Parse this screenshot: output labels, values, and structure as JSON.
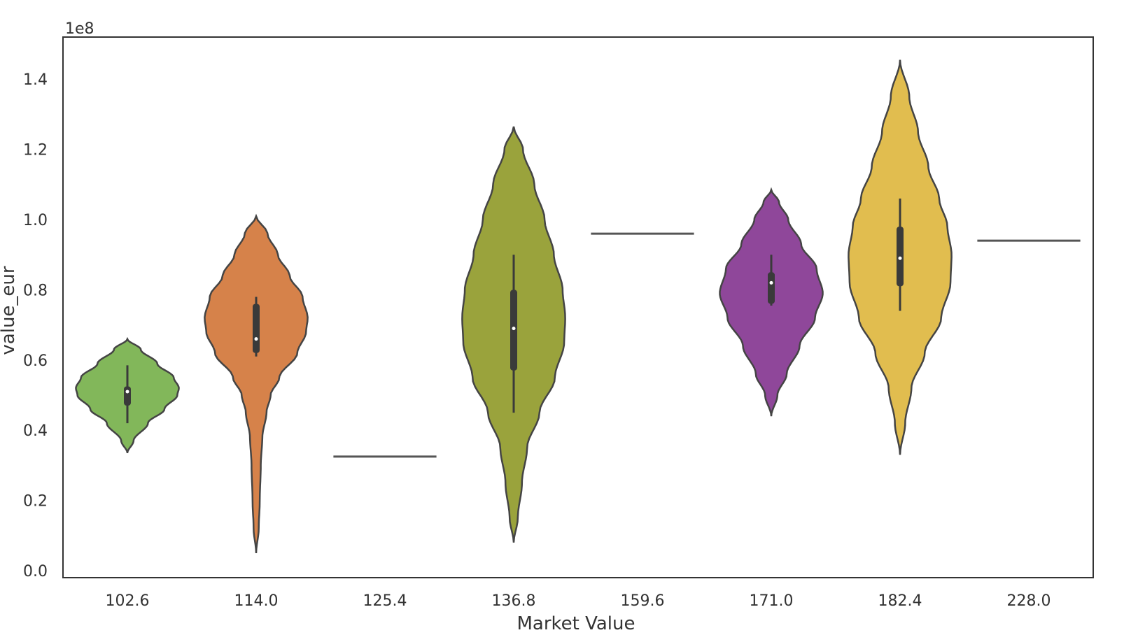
{
  "chart_data": {
    "type": "violin",
    "xlabel": "Market Value",
    "ylabel": "value_eur",
    "y_offset_label": "1e8",
    "ylim": [
      -0.02,
      1.52
    ],
    "y_ticks": [
      0.0,
      0.2,
      0.4,
      0.6,
      0.8,
      1.0,
      1.2,
      1.4
    ],
    "y_tick_labels": [
      "0.0",
      "0.2",
      "0.4",
      "0.6",
      "0.8",
      "1.0",
      "1.2",
      "1.4"
    ],
    "grid": false,
    "categories": [
      "102.6",
      "114.0",
      "125.4",
      "136.8",
      "159.6",
      "171.0",
      "182.4",
      "228.0"
    ],
    "violins": [
      {
        "category": "102.6",
        "color": "#82b75a",
        "min": 0.335,
        "max": 0.66,
        "q1": 0.47,
        "median": 0.51,
        "q3": 0.525,
        "whisker_low": 0.42,
        "whisker_high": 0.585,
        "profile": [
          [
            0.335,
            0.0
          ],
          [
            0.37,
            0.12
          ],
          [
            0.42,
            0.4
          ],
          [
            0.46,
            0.72
          ],
          [
            0.5,
            0.97
          ],
          [
            0.52,
            1.0
          ],
          [
            0.55,
            0.9
          ],
          [
            0.59,
            0.58
          ],
          [
            0.63,
            0.26
          ],
          [
            0.66,
            0.0
          ]
        ]
      },
      {
        "category": "114.0",
        "color": "#d6824a",
        "min": 0.05,
        "max": 1.01,
        "q1": 0.62,
        "median": 0.66,
        "q3": 0.76,
        "whisker_low": 0.61,
        "whisker_high": 0.78,
        "profile": [
          [
            0.05,
            0.0
          ],
          [
            0.12,
            0.05
          ],
          [
            0.2,
            0.07
          ],
          [
            0.3,
            0.09
          ],
          [
            0.38,
            0.12
          ],
          [
            0.45,
            0.2
          ],
          [
            0.5,
            0.28
          ],
          [
            0.55,
            0.45
          ],
          [
            0.62,
            0.8
          ],
          [
            0.68,
            0.97
          ],
          [
            0.72,
            1.0
          ],
          [
            0.78,
            0.9
          ],
          [
            0.84,
            0.65
          ],
          [
            0.9,
            0.42
          ],
          [
            0.96,
            0.22
          ],
          [
            1.01,
            0.0
          ]
        ]
      },
      {
        "category": "125.4",
        "color": "#555555",
        "single": 0.325
      },
      {
        "category": "136.8",
        "color": "#9aa33c",
        "min": 0.08,
        "max": 1.265,
        "q1": 0.57,
        "median": 0.69,
        "q3": 0.8,
        "whisker_low": 0.45,
        "whisker_high": 0.9,
        "profile": [
          [
            0.08,
            0.0
          ],
          [
            0.15,
            0.08
          ],
          [
            0.25,
            0.16
          ],
          [
            0.35,
            0.26
          ],
          [
            0.45,
            0.5
          ],
          [
            0.55,
            0.8
          ],
          [
            0.65,
            0.98
          ],
          [
            0.72,
            1.0
          ],
          [
            0.8,
            0.95
          ],
          [
            0.9,
            0.78
          ],
          [
            1.0,
            0.6
          ],
          [
            1.1,
            0.4
          ],
          [
            1.2,
            0.18
          ],
          [
            1.265,
            0.0
          ]
        ]
      },
      {
        "category": "159.6",
        "color": "#555555",
        "single": 0.96
      },
      {
        "category": "171.0",
        "color": "#8f479a",
        "min": 0.44,
        "max": 1.085,
        "q1": 0.76,
        "median": 0.82,
        "q3": 0.85,
        "whisker_low": 0.755,
        "whisker_high": 0.9,
        "profile": [
          [
            0.44,
            0.0
          ],
          [
            0.5,
            0.12
          ],
          [
            0.56,
            0.3
          ],
          [
            0.64,
            0.55
          ],
          [
            0.72,
            0.85
          ],
          [
            0.79,
            1.0
          ],
          [
            0.86,
            0.88
          ],
          [
            0.93,
            0.58
          ],
          [
            1.0,
            0.33
          ],
          [
            1.05,
            0.15
          ],
          [
            1.085,
            0.0
          ]
        ]
      },
      {
        "category": "182.4",
        "color": "#e1bd4f",
        "min": 0.33,
        "max": 1.455,
        "q1": 0.81,
        "median": 0.89,
        "q3": 0.98,
        "whisker_low": 0.74,
        "whisker_high": 1.06,
        "profile": [
          [
            0.33,
            0.0
          ],
          [
            0.42,
            0.1
          ],
          [
            0.52,
            0.22
          ],
          [
            0.62,
            0.48
          ],
          [
            0.72,
            0.8
          ],
          [
            0.82,
            0.98
          ],
          [
            0.9,
            1.0
          ],
          [
            0.98,
            0.92
          ],
          [
            1.06,
            0.76
          ],
          [
            1.15,
            0.55
          ],
          [
            1.25,
            0.35
          ],
          [
            1.35,
            0.18
          ],
          [
            1.455,
            0.0
          ]
        ]
      },
      {
        "category": "228.0",
        "color": "#555555",
        "single": 0.94
      }
    ]
  }
}
